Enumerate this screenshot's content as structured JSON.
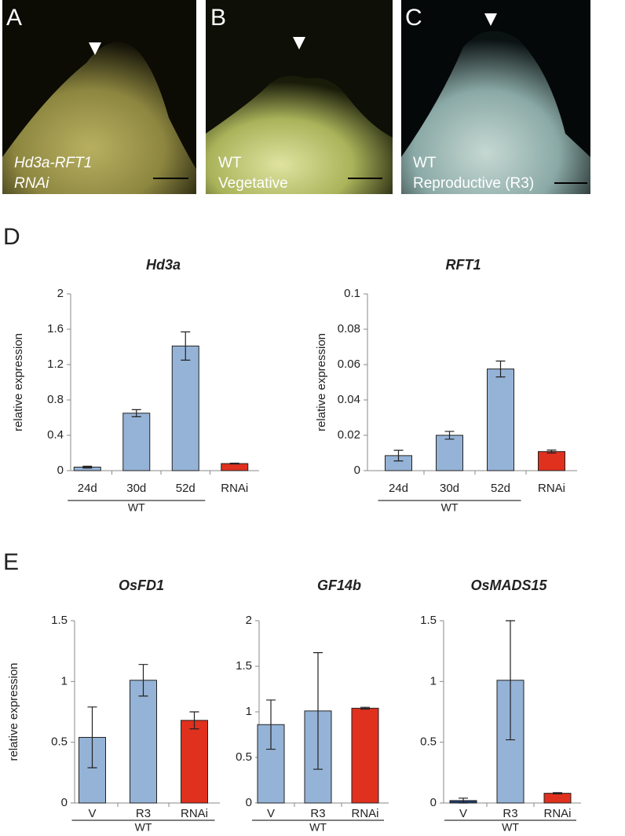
{
  "panels": [
    {
      "label": "A",
      "caption": [
        "Hd3a-RFT1",
        "RNAi"
      ]
    },
    {
      "label": "B",
      "caption": [
        "WT",
        "Vegetative"
      ]
    },
    {
      "label": "C",
      "caption": [
        "WT",
        "Reproductive (R3)"
      ]
    }
  ],
  "section_labels": [
    "D",
    "E"
  ],
  "chart_data": [
    {
      "type": "bar",
      "title": "Hd3a",
      "y_label": "relative expression",
      "categories": [
        "24d",
        "30d",
        "52d",
        "RNAi"
      ],
      "values": [
        0.04,
        0.65,
        1.41,
        0.08
      ],
      "errors": [
        0.01,
        0.04,
        0.16,
        0.005
      ],
      "colors": [
        "#95b3d7",
        "#95b3d7",
        "#95b3d7",
        "#e0301e"
      ],
      "ylim": [
        0,
        2
      ],
      "yticks": [
        0,
        0.4,
        0.8,
        1.2,
        1.6,
        2
      ],
      "group_label": "WT"
    },
    {
      "type": "bar",
      "title": "RFT1",
      "y_label": "relative expression",
      "categories": [
        "24d",
        "30d",
        "52d",
        "RNAi"
      ],
      "values": [
        0.0085,
        0.02,
        0.0575,
        0.0108
      ],
      "errors": [
        0.003,
        0.0022,
        0.0045,
        0.0008
      ],
      "colors": [
        "#95b3d7",
        "#95b3d7",
        "#95b3d7",
        "#e0301e"
      ],
      "ylim": [
        0,
        0.1
      ],
      "yticks": [
        0,
        0.02,
        0.04,
        0.06,
        0.08,
        0.1
      ],
      "group_label": "WT"
    },
    {
      "type": "bar",
      "title": "OsFD1",
      "y_label": "relative expression",
      "categories": [
        "V",
        "R3",
        "RNAi"
      ],
      "values": [
        0.54,
        1.01,
        0.68
      ],
      "errors": [
        0.25,
        0.13,
        0.07
      ],
      "colors": [
        "#95b3d7",
        "#95b3d7",
        "#e0301e"
      ],
      "ylim": [
        0,
        1.5
      ],
      "yticks": [
        0,
        0.5,
        1,
        1.5
      ],
      "group_label": "WT"
    },
    {
      "type": "bar",
      "title": "GF14b",
      "categories": [
        "V",
        "R3",
        "RNAi"
      ],
      "values": [
        0.86,
        1.01,
        1.04
      ],
      "errors": [
        0.27,
        0.64,
        0.01
      ],
      "colors": [
        "#95b3d7",
        "#95b3d7",
        "#e0301e"
      ],
      "ylim": [
        0,
        2
      ],
      "yticks": [
        0,
        0.5,
        1,
        1.5,
        2
      ],
      "group_label": "WT"
    },
    {
      "type": "bar",
      "title": "OsMADS15",
      "categories": [
        "V",
        "R3",
        "RNAi"
      ],
      "values": [
        0.02,
        1.01,
        0.08
      ],
      "errors": [
        0.02,
        0.49,
        0.005
      ],
      "colors": [
        "#1f3a6e",
        "#95b3d7",
        "#e0301e"
      ],
      "ylim": [
        0,
        1.5
      ],
      "yticks": [
        0,
        0.5,
        1,
        1.5
      ],
      "group_label": "WT"
    }
  ]
}
